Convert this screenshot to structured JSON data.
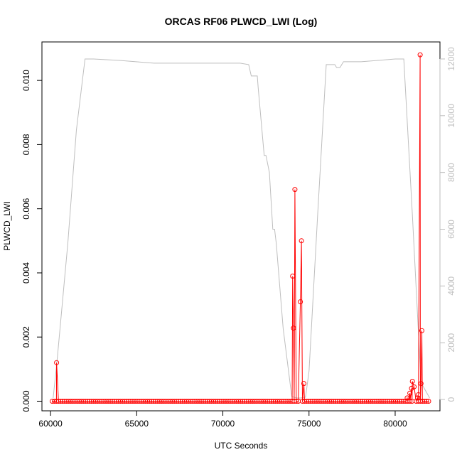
{
  "chart_data": {
    "type": "line",
    "title": "ORCAS RF06 PLWCD_LWI (Log)",
    "xlabel": "UTC Seconds",
    "ylabel": "PLWCD_LWI",
    "xlim": [
      59500,
      82600
    ],
    "ylim": [
      -0.0003,
      0.0112
    ],
    "y2lim": [
      -400,
      12600
    ],
    "x_ticks": [
      60000,
      65000,
      70000,
      75000,
      80000
    ],
    "y_ticks": [
      0.0,
      0.002,
      0.004,
      0.006,
      0.008,
      0.01
    ],
    "y_tick_labels": [
      "0.000",
      "0.002",
      "0.004",
      "0.006",
      "0.008",
      "0.010"
    ],
    "y2_ticks": [
      0,
      2000,
      4000,
      6000,
      8000,
      10000,
      12000
    ],
    "colors": {
      "primary": "#ff0000",
      "secondary": "#bebebe",
      "axis": "#000000"
    },
    "series": [
      {
        "axis": "left",
        "style": "line+points",
        "color": "#ff0000",
        "baseline": {
          "x_start": 60100,
          "x_end": 82000,
          "step": 120,
          "value": 0.0
        },
        "points": [
          [
            60350,
            0.0012
          ],
          [
            74050,
            0.0039
          ],
          [
            74100,
            0.00228
          ],
          [
            74180,
            0.0066
          ],
          [
            74500,
            0.0031
          ],
          [
            74560,
            0.005
          ],
          [
            74700,
            0.00055
          ],
          [
            80700,
            0.0001
          ],
          [
            80850,
            0.00025
          ],
          [
            80950,
            0.0004
          ],
          [
            81000,
            0.00062
          ],
          [
            81100,
            0.00045
          ],
          [
            81300,
            0.0001
          ],
          [
            81350,
            0.0002
          ],
          [
            81450,
            0.0108
          ],
          [
            81500,
            0.00055
          ],
          [
            81550,
            0.0022
          ]
        ]
      },
      {
        "axis": "right",
        "style": "line",
        "color": "#bebebe",
        "x": [
          60150,
          60400,
          61000,
          61500,
          62000,
          62500,
          64000,
          66000,
          68000,
          70000,
          71000,
          71500,
          71650,
          71700,
          72000,
          72050,
          72400,
          72500,
          72700,
          72900,
          73000,
          73100,
          73500,
          74000,
          74300,
          74500,
          74800,
          75000,
          75500,
          76000,
          76500,
          76600,
          76800,
          77000,
          78000,
          79000,
          80000,
          80500,
          81000,
          81500,
          82000
        ],
        "values": [
          50,
          1500,
          5500,
          9500,
          12000,
          12000,
          11950,
          11850,
          11850,
          11850,
          11850,
          11800,
          11400,
          11400,
          11400,
          11000,
          8600,
          8600,
          8000,
          6000,
          6000,
          5500,
          2500,
          100,
          50,
          50,
          80,
          1000,
          6500,
          11800,
          11800,
          11700,
          11700,
          11900,
          11900,
          11950,
          12000,
          12000,
          6500,
          600,
          50
        ]
      }
    ]
  }
}
